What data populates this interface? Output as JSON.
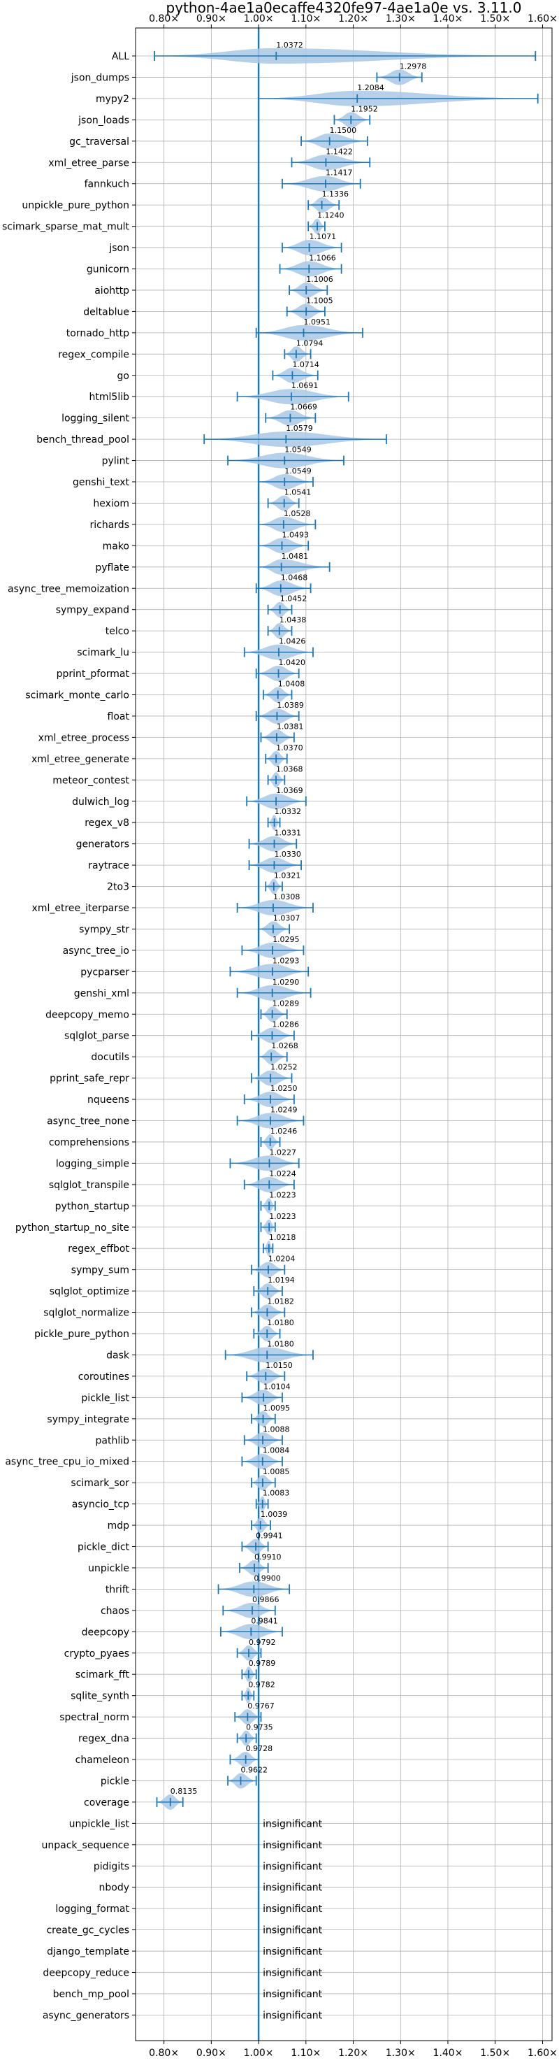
{
  "chart_data": {
    "type": "violin",
    "title": "python-4ae1a0ecaffe4320fe97-4ae1a0e vs. 3.11.0",
    "xlim": [
      0.74,
      1.62
    ],
    "reference_x": 1.0,
    "x_ticks": [
      0.8,
      0.9,
      1.0,
      1.1,
      1.2,
      1.3,
      1.4,
      1.5,
      1.6
    ],
    "x_tick_labels": [
      "0.80×",
      "0.90×",
      "1.00×",
      "1.10×",
      "1.20×",
      "1.30×",
      "1.40×",
      "1.50×",
      "1.60×"
    ],
    "grid": true,
    "colors": {
      "violin": "#a9c8e6",
      "line": "#1f77b4"
    },
    "benchmarks": [
      {
        "name": "ALL",
        "median": 1.0372,
        "label": "1.0372",
        "min": 0.78,
        "max": 1.585
      },
      {
        "name": "json_dumps",
        "median": 1.2978,
        "label": "1.2978",
        "min": 1.25,
        "max": 1.345
      },
      {
        "name": "mypy2",
        "median": 1.2084,
        "label": "1.2084",
        "min": 1.0,
        "max": 1.59
      },
      {
        "name": "json_loads",
        "median": 1.1952,
        "label": "1.1952",
        "min": 1.16,
        "max": 1.235
      },
      {
        "name": "gc_traversal",
        "median": 1.15,
        "label": "1.1500",
        "min": 1.09,
        "max": 1.23
      },
      {
        "name": "xml_etree_parse",
        "median": 1.1422,
        "label": "1.1422",
        "min": 1.07,
        "max": 1.235
      },
      {
        "name": "fannkuch",
        "median": 1.1417,
        "label": "1.1417",
        "min": 1.05,
        "max": 1.215
      },
      {
        "name": "unpickle_pure_python",
        "median": 1.1336,
        "label": "1.1336",
        "min": 1.105,
        "max": 1.17
      },
      {
        "name": "scimark_sparse_mat_mult",
        "median": 1.124,
        "label": "1.1240",
        "min": 1.105,
        "max": 1.14
      },
      {
        "name": "json",
        "median": 1.1071,
        "label": "1.1071",
        "min": 1.05,
        "max": 1.175
      },
      {
        "name": "gunicorn",
        "median": 1.1066,
        "label": "1.1066",
        "min": 1.045,
        "max": 1.175
      },
      {
        "name": "aiohttp",
        "median": 1.1006,
        "label": "1.1006",
        "min": 1.065,
        "max": 1.145
      },
      {
        "name": "deltablue",
        "median": 1.1005,
        "label": "1.1005",
        "min": 1.06,
        "max": 1.14
      },
      {
        "name": "tornado_http",
        "median": 1.0951,
        "label": "1.0951",
        "min": 0.995,
        "max": 1.22
      },
      {
        "name": "regex_compile",
        "median": 1.0794,
        "label": "1.0794",
        "min": 1.055,
        "max": 1.11
      },
      {
        "name": "go",
        "median": 1.0714,
        "label": "1.0714",
        "min": 1.03,
        "max": 1.125
      },
      {
        "name": "html5lib",
        "median": 1.0691,
        "label": "1.0691",
        "min": 0.955,
        "max": 1.19
      },
      {
        "name": "logging_silent",
        "median": 1.0669,
        "label": "1.0669",
        "min": 1.015,
        "max": 1.12
      },
      {
        "name": "bench_thread_pool",
        "median": 1.0579,
        "label": "1.0579",
        "min": 0.885,
        "max": 1.27
      },
      {
        "name": "pylint",
        "median": 1.0549,
        "label": "1.0549",
        "min": 0.935,
        "max": 1.18
      },
      {
        "name": "genshi_text",
        "median": 1.0549,
        "label": "1.0549",
        "min": 1.0,
        "max": 1.115
      },
      {
        "name": "hexiom",
        "median": 1.0541,
        "label": "1.0541",
        "min": 1.02,
        "max": 1.085
      },
      {
        "name": "richards",
        "median": 1.0528,
        "label": "1.0528",
        "min": 1.0,
        "max": 1.12
      },
      {
        "name": "mako",
        "median": 1.0493,
        "label": "1.0493",
        "min": 1.0,
        "max": 1.105
      },
      {
        "name": "pyflate",
        "median": 1.0481,
        "label": "1.0481",
        "min": 1.0,
        "max": 1.15
      },
      {
        "name": "async_tree_memoization",
        "median": 1.0468,
        "label": "1.0468",
        "min": 0.995,
        "max": 1.11
      },
      {
        "name": "sympy_expand",
        "median": 1.0452,
        "label": "1.0452",
        "min": 1.02,
        "max": 1.07
      },
      {
        "name": "telco",
        "median": 1.0438,
        "label": "1.0438",
        "min": 1.02,
        "max": 1.07
      },
      {
        "name": "scimark_lu",
        "median": 1.0426,
        "label": "1.0426",
        "min": 0.97,
        "max": 1.115
      },
      {
        "name": "pprint_pformat",
        "median": 1.042,
        "label": "1.0420",
        "min": 0.995,
        "max": 1.085
      },
      {
        "name": "scimark_monte_carlo",
        "median": 1.0408,
        "label": "1.0408",
        "min": 1.01,
        "max": 1.07
      },
      {
        "name": "float",
        "median": 1.0389,
        "label": "1.0389",
        "min": 0.995,
        "max": 1.085
      },
      {
        "name": "xml_etree_process",
        "median": 1.0381,
        "label": "1.0381",
        "min": 1.005,
        "max": 1.075
      },
      {
        "name": "xml_etree_generate",
        "median": 1.037,
        "label": "1.0370",
        "min": 1.015,
        "max": 1.06
      },
      {
        "name": "meteor_contest",
        "median": 1.0368,
        "label": "1.0368",
        "min": 1.02,
        "max": 1.055
      },
      {
        "name": "dulwich_log",
        "median": 1.0369,
        "label": "1.0369",
        "min": 0.975,
        "max": 1.1
      },
      {
        "name": "regex_v8",
        "median": 1.0332,
        "label": "1.0332",
        "min": 1.02,
        "max": 1.045
      },
      {
        "name": "generators",
        "median": 1.0331,
        "label": "1.0331",
        "min": 0.98,
        "max": 1.08
      },
      {
        "name": "raytrace",
        "median": 1.033,
        "label": "1.0330",
        "min": 0.98,
        "max": 1.09
      },
      {
        "name": "2to3",
        "median": 1.0321,
        "label": "1.0321",
        "min": 1.015,
        "max": 1.05
      },
      {
        "name": "xml_etree_iterparse",
        "median": 1.0308,
        "label": "1.0308",
        "min": 0.955,
        "max": 1.115
      },
      {
        "name": "sympy_str",
        "median": 1.0307,
        "label": "1.0307",
        "min": 1.0,
        "max": 1.065
      },
      {
        "name": "async_tree_io",
        "median": 1.0295,
        "label": "1.0295",
        "min": 0.965,
        "max": 1.095
      },
      {
        "name": "pycparser",
        "median": 1.0293,
        "label": "1.0293",
        "min": 0.94,
        "max": 1.105
      },
      {
        "name": "genshi_xml",
        "median": 1.029,
        "label": "1.0290",
        "min": 0.955,
        "max": 1.11
      },
      {
        "name": "deepcopy_memo",
        "median": 1.0289,
        "label": "1.0289",
        "min": 1.005,
        "max": 1.06
      },
      {
        "name": "sqlglot_parse",
        "median": 1.0286,
        "label": "1.0286",
        "min": 0.985,
        "max": 1.075
      },
      {
        "name": "docutils",
        "median": 1.0268,
        "label": "1.0268",
        "min": 1.0,
        "max": 1.06
      },
      {
        "name": "pprint_safe_repr",
        "median": 1.0252,
        "label": "1.0252",
        "min": 0.985,
        "max": 1.07
      },
      {
        "name": "nqueens",
        "median": 1.025,
        "label": "1.0250",
        "min": 0.97,
        "max": 1.075
      },
      {
        "name": "async_tree_none",
        "median": 1.0249,
        "label": "1.0249",
        "min": 0.955,
        "max": 1.095
      },
      {
        "name": "comprehensions",
        "median": 1.0246,
        "label": "1.0246",
        "min": 1.005,
        "max": 1.045
      },
      {
        "name": "logging_simple",
        "median": 1.0227,
        "label": "1.0227",
        "min": 0.94,
        "max": 1.085
      },
      {
        "name": "sqlglot_transpile",
        "median": 1.0224,
        "label": "1.0224",
        "min": 0.97,
        "max": 1.075
      },
      {
        "name": "python_startup",
        "median": 1.0223,
        "label": "1.0223",
        "min": 1.005,
        "max": 1.035
      },
      {
        "name": "python_startup_no_site",
        "median": 1.0223,
        "label": "1.0223",
        "min": 1.005,
        "max": 1.035
      },
      {
        "name": "regex_effbot",
        "median": 1.0218,
        "label": "1.0218",
        "min": 1.01,
        "max": 1.03
      },
      {
        "name": "sympy_sum",
        "median": 1.0204,
        "label": "1.0204",
        "min": 0.985,
        "max": 1.055
      },
      {
        "name": "sqlglot_optimize",
        "median": 1.0194,
        "label": "1.0194",
        "min": 0.99,
        "max": 1.05
      },
      {
        "name": "sqlglot_normalize",
        "median": 1.0182,
        "label": "1.0182",
        "min": 0.985,
        "max": 1.055
      },
      {
        "name": "pickle_pure_python",
        "median": 1.018,
        "label": "1.0180",
        "min": 0.99,
        "max": 1.045
      },
      {
        "name": "dask",
        "median": 1.018,
        "label": "1.0180",
        "min": 0.93,
        "max": 1.115
      },
      {
        "name": "coroutines",
        "median": 1.015,
        "label": "1.0150",
        "min": 0.975,
        "max": 1.055
      },
      {
        "name": "pickle_list",
        "median": 1.0104,
        "label": "1.0104",
        "min": 0.965,
        "max": 1.05
      },
      {
        "name": "sympy_integrate",
        "median": 1.0095,
        "label": "1.0095",
        "min": 0.985,
        "max": 1.035
      },
      {
        "name": "pathlib",
        "median": 1.0088,
        "label": "1.0088",
        "min": 0.97,
        "max": 1.05
      },
      {
        "name": "async_tree_cpu_io_mixed",
        "median": 1.0084,
        "label": "1.0084",
        "min": 0.965,
        "max": 1.05
      },
      {
        "name": "scimark_sor",
        "median": 1.0085,
        "label": "1.0085",
        "min": 0.985,
        "max": 1.035
      },
      {
        "name": "asyncio_tcp",
        "median": 1.0083,
        "label": "1.0083",
        "min": 0.995,
        "max": 1.02
      },
      {
        "name": "mdp",
        "median": 1.0039,
        "label": "1.0039",
        "min": 0.985,
        "max": 1.025
      },
      {
        "name": "pickle_dict",
        "median": 0.9941,
        "label": "0.9941",
        "min": 0.965,
        "max": 1.02
      },
      {
        "name": "unpickle",
        "median": 0.991,
        "label": "0.9910",
        "min": 0.96,
        "max": 1.02
      },
      {
        "name": "thrift",
        "median": 0.99,
        "label": "0.9900",
        "min": 0.915,
        "max": 1.065
      },
      {
        "name": "chaos",
        "median": 0.9866,
        "label": "0.9866",
        "min": 0.925,
        "max": 1.035
      },
      {
        "name": "deepcopy",
        "median": 0.9841,
        "label": "0.9841",
        "min": 0.92,
        "max": 1.05
      },
      {
        "name": "crypto_pyaes",
        "median": 0.9792,
        "label": "0.9792",
        "min": 0.955,
        "max": 1.005
      },
      {
        "name": "scimark_fft",
        "median": 0.9789,
        "label": "0.9789",
        "min": 0.965,
        "max": 0.995
      },
      {
        "name": "sqlite_synth",
        "median": 0.9782,
        "label": "0.9782",
        "min": 0.965,
        "max": 0.99
      },
      {
        "name": "spectral_norm",
        "median": 0.9767,
        "label": "0.9767",
        "min": 0.95,
        "max": 1.005
      },
      {
        "name": "regex_dna",
        "median": 0.9735,
        "label": "0.9735",
        "min": 0.955,
        "max": 0.995
      },
      {
        "name": "chameleon",
        "median": 0.9728,
        "label": "0.9728",
        "min": 0.94,
        "max": 1.0
      },
      {
        "name": "pickle",
        "median": 0.9622,
        "label": "0.9622",
        "min": 0.935,
        "max": 0.995
      },
      {
        "name": "coverage",
        "median": 0.8135,
        "label": "0.8135",
        "min": 0.785,
        "max": 0.84
      }
    ],
    "insignificant": {
      "label": "insignificant",
      "names": [
        "unpickle_list",
        "unpack_sequence",
        "pidigits",
        "nbody",
        "logging_format",
        "create_gc_cycles",
        "django_template",
        "deepcopy_reduce",
        "bench_mp_pool",
        "async_generators"
      ]
    }
  }
}
